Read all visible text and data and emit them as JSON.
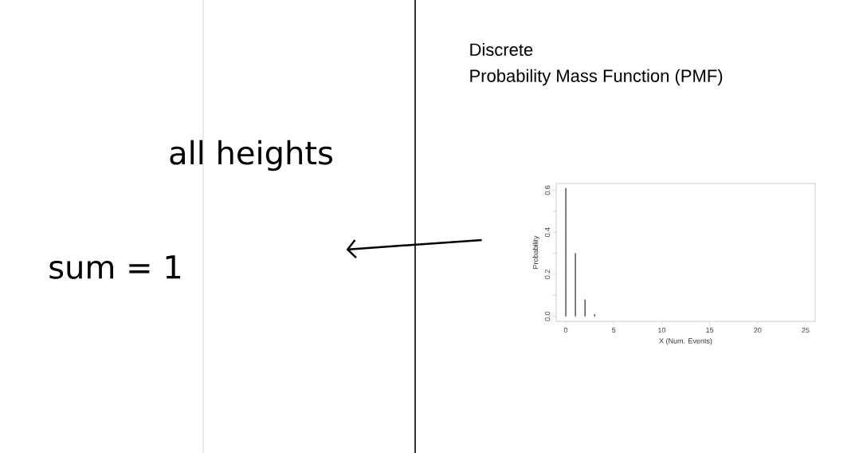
{
  "chart_data": {
    "type": "bar",
    "title": "Discrete",
    "subtitle": "Probability Mass Function (PMF)",
    "xlabel": "X (Num. Events)",
    "ylabel": "Probability",
    "annotations": [
      "all heights",
      "sum = 1"
    ],
    "x": [
      0,
      1,
      2,
      3,
      4,
      5,
      6,
      7,
      8,
      9,
      10,
      11,
      12,
      13,
      14,
      15,
      16,
      17,
      18,
      19,
      20,
      21,
      22,
      23,
      24,
      25
    ],
    "values": [
      0.61,
      0.3,
      0.08,
      0.01,
      0,
      0,
      0,
      0,
      0,
      0,
      0,
      0,
      0,
      0,
      0,
      0,
      0,
      0,
      0,
      0,
      0,
      0,
      0,
      0,
      0,
      0
    ],
    "color": "#000000",
    "xlim": [
      -1,
      26
    ],
    "ylim": [
      -0.024,
      0.632
    ],
    "xticks": [
      0,
      5,
      10,
      15,
      20,
      25
    ],
    "yticks": [
      {
        "value": 0,
        "label": "0.0"
      },
      {
        "value": 0.1,
        "label": null
      },
      {
        "value": 0.2,
        "label": "0.2"
      },
      {
        "value": 0.3,
        "label": null
      },
      {
        "value": 0.4,
        "label": "0.4"
      },
      {
        "value": 0.5,
        "label": null
      },
      {
        "value": 0.6,
        "label": "0.6"
      }
    ],
    "grid": false
  }
}
